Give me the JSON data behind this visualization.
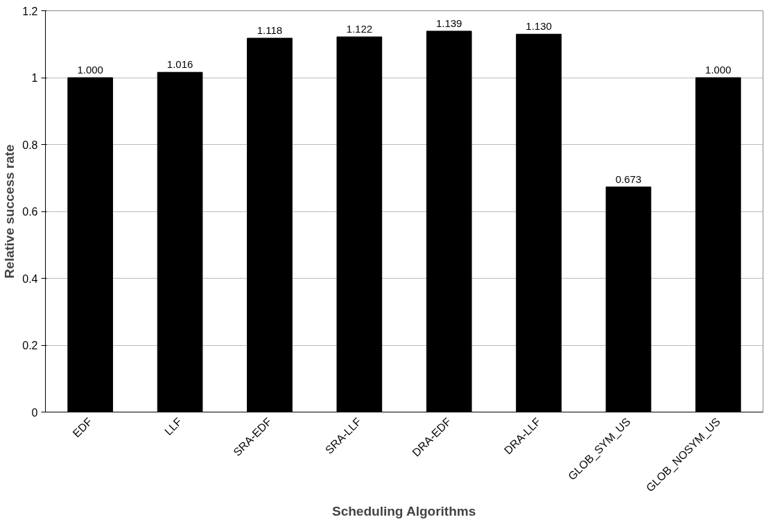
{
  "chart_data": {
    "type": "bar",
    "xlabel": "Scheduling Algorithms",
    "ylabel": "Relative success rate",
    "categories": [
      "EDF",
      "LLF",
      "SRA-EDF",
      "SRA-LLF",
      "DRA-EDF",
      "DRA-LLF",
      "GLOB_SYM_US",
      "GLOB_NOSYM_US"
    ],
    "values": [
      1.0,
      1.016,
      1.118,
      1.122,
      1.139,
      1.13,
      0.673,
      1.0
    ],
    "value_labels": [
      "1.000",
      "1.016",
      "1.118",
      "1.122",
      "1.139",
      "1.130",
      "0.673",
      "1.000"
    ],
    "color": "#000000",
    "ylim": [
      0,
      1.2
    ],
    "yticks": [
      0,
      0.2,
      0.4,
      0.6,
      0.8,
      1,
      1.2
    ],
    "grid": "y"
  }
}
